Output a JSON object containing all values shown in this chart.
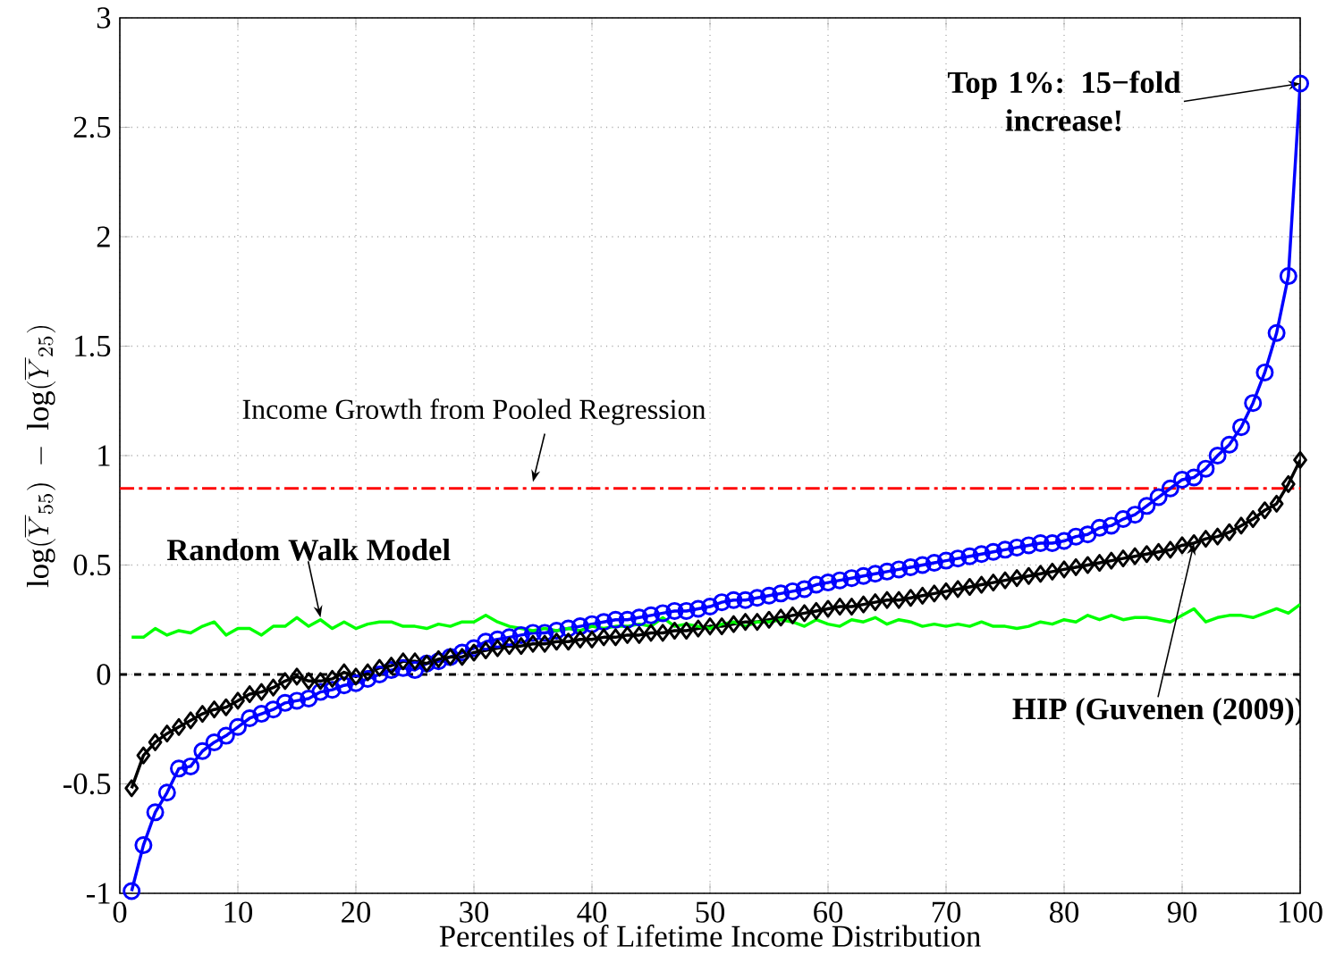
{
  "chart_data": {
    "type": "line",
    "xlabel": "Percentiles of Lifetime Income Distribution",
    "ylabel": "\\log(\\overline{Y}_{55})\\ -\\ \\log(\\overline{Y}_{25})",
    "x": [
      1,
      2,
      3,
      4,
      5,
      6,
      7,
      8,
      9,
      10,
      11,
      12,
      13,
      14,
      15,
      16,
      17,
      18,
      19,
      20,
      21,
      22,
      23,
      24,
      25,
      26,
      27,
      28,
      29,
      30,
      31,
      32,
      33,
      34,
      35,
      36,
      37,
      38,
      39,
      40,
      41,
      42,
      43,
      44,
      45,
      46,
      47,
      48,
      49,
      50,
      51,
      52,
      53,
      54,
      55,
      56,
      57,
      58,
      59,
      60,
      61,
      62,
      63,
      64,
      65,
      66,
      67,
      68,
      69,
      70,
      71,
      72,
      73,
      74,
      75,
      76,
      77,
      78,
      79,
      80,
      81,
      82,
      83,
      84,
      85,
      86,
      87,
      88,
      89,
      90,
      91,
      92,
      93,
      94,
      95,
      96,
      97,
      98,
      99,
      100
    ],
    "series": [
      {
        "color": "#0000ff",
        "marker": "circle",
        "line_style": "solid",
        "values": [
          -0.99,
          -0.78,
          -0.63,
          -0.54,
          -0.43,
          -0.42,
          -0.35,
          -0.31,
          -0.28,
          -0.24,
          -0.2,
          -0.18,
          -0.16,
          -0.13,
          -0.12,
          -0.11,
          -0.08,
          -0.07,
          -0.05,
          -0.04,
          -0.02,
          0.0,
          0.02,
          0.03,
          0.02,
          0.05,
          0.06,
          0.08,
          0.1,
          0.12,
          0.15,
          0.16,
          0.17,
          0.18,
          0.19,
          0.19,
          0.2,
          0.21,
          0.22,
          0.23,
          0.24,
          0.25,
          0.25,
          0.26,
          0.27,
          0.28,
          0.29,
          0.29,
          0.3,
          0.31,
          0.33,
          0.34,
          0.34,
          0.35,
          0.36,
          0.37,
          0.38,
          0.39,
          0.41,
          0.42,
          0.43,
          0.44,
          0.45,
          0.46,
          0.47,
          0.48,
          0.49,
          0.5,
          0.51,
          0.52,
          0.53,
          0.54,
          0.55,
          0.56,
          0.57,
          0.58,
          0.59,
          0.6,
          0.6,
          0.61,
          0.63,
          0.64,
          0.67,
          0.68,
          0.71,
          0.73,
          0.77,
          0.81,
          0.85,
          0.89,
          0.9,
          0.94,
          1.0,
          1.05,
          1.13,
          1.24,
          1.38,
          1.56,
          1.82,
          2.7
        ]
      },
      {
        "color": "#000000",
        "marker": "diamond",
        "line_style": "solid",
        "values": [
          -0.52,
          -0.37,
          -0.31,
          -0.27,
          -0.24,
          -0.21,
          -0.18,
          -0.16,
          -0.15,
          -0.12,
          -0.09,
          -0.08,
          -0.06,
          -0.03,
          -0.01,
          -0.03,
          -0.03,
          -0.02,
          0.01,
          -0.01,
          0.01,
          0.03,
          0.04,
          0.06,
          0.06,
          0.05,
          0.07,
          0.08,
          0.08,
          0.1,
          0.11,
          0.12,
          0.13,
          0.13,
          0.14,
          0.14,
          0.15,
          0.15,
          0.16,
          0.16,
          0.17,
          0.17,
          0.18,
          0.18,
          0.19,
          0.19,
          0.2,
          0.2,
          0.21,
          0.22,
          0.22,
          0.23,
          0.24,
          0.24,
          0.25,
          0.26,
          0.27,
          0.28,
          0.29,
          0.3,
          0.31,
          0.31,
          0.32,
          0.33,
          0.34,
          0.34,
          0.35,
          0.36,
          0.37,
          0.38,
          0.39,
          0.4,
          0.41,
          0.42,
          0.43,
          0.44,
          0.45,
          0.46,
          0.47,
          0.48,
          0.49,
          0.5,
          0.51,
          0.52,
          0.53,
          0.54,
          0.55,
          0.56,
          0.57,
          0.59,
          0.6,
          0.62,
          0.63,
          0.65,
          0.68,
          0.71,
          0.75,
          0.78,
          0.87,
          0.98
        ]
      },
      {
        "color": "#00ff00",
        "marker": "none",
        "line_style": "solid",
        "values": [
          0.17,
          0.17,
          0.21,
          0.18,
          0.2,
          0.19,
          0.22,
          0.24,
          0.18,
          0.21,
          0.21,
          0.18,
          0.22,
          0.22,
          0.26,
          0.22,
          0.25,
          0.21,
          0.24,
          0.21,
          0.23,
          0.24,
          0.24,
          0.22,
          0.22,
          0.21,
          0.23,
          0.22,
          0.24,
          0.24,
          0.27,
          0.24,
          0.22,
          0.21,
          0.2,
          0.21,
          0.2,
          0.21,
          0.2,
          0.22,
          0.21,
          0.22,
          0.22,
          0.23,
          0.22,
          0.26,
          0.22,
          0.23,
          0.22,
          0.21,
          0.23,
          0.24,
          0.22,
          0.24,
          0.24,
          0.25,
          0.24,
          0.22,
          0.25,
          0.23,
          0.22,
          0.25,
          0.24,
          0.26,
          0.23,
          0.25,
          0.24,
          0.22,
          0.23,
          0.22,
          0.23,
          0.22,
          0.24,
          0.22,
          0.22,
          0.21,
          0.22,
          0.24,
          0.23,
          0.25,
          0.24,
          0.27,
          0.25,
          0.27,
          0.25,
          0.26,
          0.26,
          0.25,
          0.24,
          0.27,
          0.3,
          0.24,
          0.26,
          0.27,
          0.27,
          0.26,
          0.28,
          0.3,
          0.28,
          0.32
        ]
      }
    ],
    "xlim": [
      0,
      100
    ],
    "xticks": [
      0,
      10,
      20,
      30,
      40,
      50,
      60,
      70,
      80,
      90,
      100
    ],
    "ylim": [
      -1,
      3
    ],
    "yticks": [
      -1,
      -0.5,
      0,
      0.5,
      1,
      1.5,
      2,
      2.5,
      3
    ],
    "grid": true,
    "ref_lines": [
      {
        "axis": "y",
        "value": 0.85,
        "label": "Income Growth from Pooled Regression",
        "color": "#ff0000",
        "line_style": "dashdot"
      },
      {
        "axis": "y",
        "value": 0,
        "color": "#000000",
        "line_style": "dashed"
      }
    ],
    "annotations": [
      {
        "text": "Top 1%: 15−fold increase!",
        "x": 100,
        "y": 2.7
      },
      {
        "text": "Random Walk Model",
        "x": 17,
        "y": 0.26
      },
      {
        "text": "HIP (Guvenen (2009))",
        "x": 91,
        "y": 0.6
      }
    ]
  }
}
